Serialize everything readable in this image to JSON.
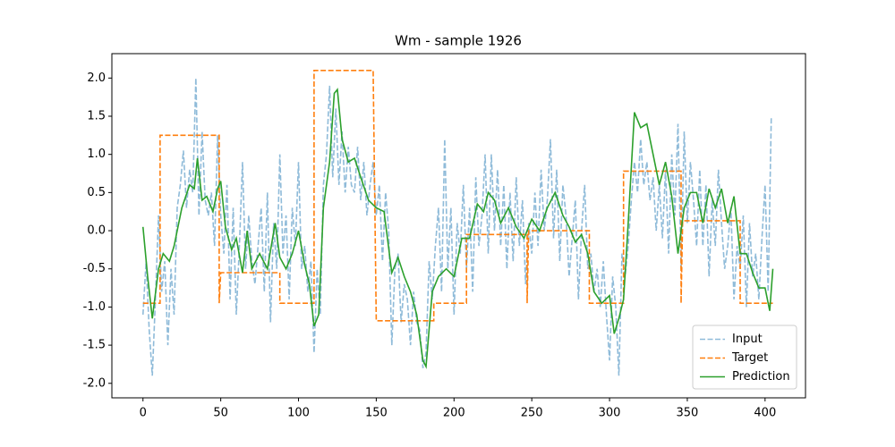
{
  "chart_data": {
    "type": "line",
    "title": "Wm - sample 1926",
    "xlim": [
      -20,
      426
    ],
    "ylim": [
      -2.19,
      2.32
    ],
    "xticks": [
      0,
      50,
      100,
      150,
      200,
      250,
      300,
      350,
      400
    ],
    "yticks": [
      {
        "value": -2,
        "label": "-2.0"
      },
      {
        "value": -1.5,
        "label": "-1.5"
      },
      {
        "value": -1,
        "label": "-1.0"
      },
      {
        "value": -0.5,
        "label": "-0.5"
      },
      {
        "value": 0,
        "label": "0.0"
      },
      {
        "value": 0.5,
        "label": "0.5"
      },
      {
        "value": 1,
        "label": "1.0"
      },
      {
        "value": 1.5,
        "label": "1.5"
      },
      {
        "value": 2,
        "label": "2.0"
      }
    ],
    "legend": "lower right",
    "series": [
      {
        "name": "Input",
        "color": "#1f77b4",
        "linestyle": "dashed",
        "alpha": 0.5,
        "x": [
          0,
          2,
          4,
          6,
          8,
          10,
          12,
          14,
          16,
          18,
          20,
          22,
          24,
          26,
          28,
          30,
          32,
          34,
          36,
          38,
          40,
          42,
          44,
          46,
          48,
          50,
          52,
          54,
          56,
          58,
          60,
          62,
          64,
          66,
          68,
          70,
          72,
          74,
          76,
          78,
          80,
          82,
          84,
          86,
          88,
          90,
          92,
          94,
          96,
          98,
          100,
          102,
          104,
          106,
          108,
          110,
          112,
          114,
          116,
          118,
          120,
          122,
          124,
          126,
          128,
          130,
          132,
          134,
          136,
          138,
          140,
          142,
          144,
          146,
          148,
          150,
          152,
          154,
          156,
          158,
          160,
          162,
          164,
          166,
          168,
          170,
          172,
          174,
          176,
          178,
          180,
          182,
          184,
          186,
          188,
          190,
          192,
          194,
          196,
          198,
          200,
          202,
          204,
          206,
          208,
          210,
          212,
          214,
          216,
          218,
          220,
          222,
          224,
          226,
          228,
          230,
          232,
          234,
          236,
          238,
          240,
          242,
          244,
          246,
          248,
          250,
          252,
          254,
          256,
          258,
          260,
          262,
          264,
          266,
          268,
          270,
          272,
          274,
          276,
          278,
          280,
          282,
          284,
          286,
          288,
          290,
          292,
          294,
          296,
          298,
          300,
          302,
          304,
          306,
          308,
          310,
          312,
          314,
          316,
          318,
          320,
          322,
          324,
          326,
          328,
          330,
          332,
          334,
          336,
          338,
          340,
          342,
          344,
          346,
          348,
          350,
          352,
          354,
          356,
          358,
          360,
          362,
          364,
          366,
          368,
          370,
          372,
          374,
          376,
          378,
          380,
          382,
          384,
          386,
          388,
          390,
          392,
          394,
          396,
          398,
          400,
          402,
          404
        ],
        "values": [
          -1.1,
          -0.4,
          -1.3,
          -1.9,
          -0.9,
          0.2,
          -0.8,
          -0.4,
          -1.5,
          -0.5,
          -1.1,
          0.3,
          0.6,
          1.05,
          0.3,
          0.8,
          0.5,
          2.0,
          0.2,
          1.3,
          0.4,
          0.2,
          0.5,
          -0.2,
          1.25,
          0.2,
          -0.3,
          0.6,
          -0.9,
          0.3,
          -1.1,
          -0.2,
          0.9,
          -0.5,
          0.2,
          -0.4,
          -0.7,
          -0.2,
          0.3,
          -0.8,
          0.5,
          -1.2,
          0.1,
          -0.5,
          1.0,
          -0.3,
          0.2,
          -0.9,
          0.3,
          -0.2,
          0.9,
          -0.5,
          -0.2,
          -0.8,
          -0.4,
          -1.6,
          -0.5,
          -1.1,
          0.6,
          1.0,
          1.9,
          0.7,
          1.6,
          0.6,
          1.3,
          0.5,
          1.1,
          0.6,
          0.5,
          1.1,
          0.4,
          0.9,
          0.2,
          0.6,
          0.9,
          0.2,
          0.6,
          -0.4,
          0.5,
          0.0,
          -1.5,
          -0.5,
          -0.3,
          -1.2,
          -0.7,
          -0.9,
          -1.5,
          -0.8,
          -1.2,
          -1.3,
          -1.8,
          -1.6,
          -0.4,
          -0.9,
          -0.2,
          0.3,
          -0.8,
          1.2,
          -0.5,
          0.3,
          -1.1,
          0.1,
          -0.3,
          0.6,
          -0.5,
          0.3,
          -0.8,
          0.7,
          -0.2,
          0.2,
          1.0,
          -0.3,
          1.0,
          0.0,
          0.8,
          -0.2,
          0.6,
          -0.5,
          0.5,
          -0.4,
          0.7,
          -0.2,
          0.4,
          -0.7,
          0.1,
          -0.3,
          0.5,
          -0.2,
          0.8,
          0.0,
          0.4,
          1.2,
          -0.1,
          0.8,
          -0.4,
          0.6,
          0.2,
          -0.6,
          -0.1,
          0.4,
          -0.9,
          0.0,
          0.6,
          -0.5,
          -0.3,
          -0.8,
          -0.5,
          -1.0,
          -0.4,
          -1.1,
          -1.7,
          -0.6,
          -1.0,
          -1.9,
          -0.3,
          -0.6,
          -0.2,
          0.4,
          0.9,
          0.5,
          1.2,
          0.6,
          0.9,
          0.4,
          0.7,
          0.0,
          0.6,
          -0.1,
          0.8,
          -0.3,
          1.0,
          0.2,
          1.4,
          -0.5,
          1.3,
          0.1,
          0.9,
          0.4,
          -0.2,
          0.8,
          -0.2,
          0.6,
          -0.6,
          0.4,
          -0.2,
          0.8,
          0.1,
          -0.5,
          -0.2,
          0.3,
          -0.9,
          -0.2,
          -0.5,
          0.2,
          -1.0,
          0.1,
          -0.6,
          -0.3,
          -0.9,
          -0.1,
          0.6,
          -0.8,
          1.5
        ]
      },
      {
        "name": "Target",
        "color": "#ff7f0e",
        "linestyle": "dashed",
        "alpha": 1,
        "x": [
          0,
          11,
          11,
          49,
          49,
          50,
          88,
          88,
          110,
          110,
          148,
          150,
          187,
          187,
          208,
          208,
          247,
          247,
          248,
          287,
          287,
          309,
          309,
          346,
          346,
          347,
          384,
          384,
          405
        ],
        "values": [
          -0.95,
          -0.95,
          1.25,
          1.25,
          -0.95,
          -0.55,
          -0.55,
          -0.95,
          -0.95,
          2.1,
          2.1,
          -1.18,
          -1.18,
          -0.95,
          -0.95,
          -0.05,
          -0.05,
          -0.95,
          0.0,
          0.0,
          -0.95,
          -0.95,
          0.78,
          0.78,
          -0.95,
          0.13,
          0.13,
          -0.95,
          -0.95
        ]
      },
      {
        "name": "Prediction",
        "color": "#2ca02c",
        "linestyle": "solid",
        "alpha": 1,
        "x": [
          0,
          3,
          6,
          10,
          13,
          17,
          20,
          25,
          30,
          33,
          35,
          38,
          41,
          45,
          48,
          50,
          53,
          57,
          60,
          64,
          67,
          70,
          75,
          80,
          85,
          88,
          92,
          96,
          100,
          104,
          107,
          110,
          113,
          116,
          120,
          123,
          125,
          128,
          132,
          136,
          140,
          145,
          150,
          155,
          160,
          164,
          168,
          172,
          176,
          180,
          182,
          186,
          190,
          195,
          200,
          205,
          210,
          215,
          219,
          222,
          226,
          230,
          235,
          240,
          245,
          250,
          255,
          260,
          265,
          270,
          274,
          278,
          282,
          286,
          290,
          295,
          300,
          303,
          306,
          309,
          312,
          316,
          320,
          324,
          328,
          332,
          336,
          340,
          344,
          348,
          352,
          356,
          360,
          364,
          368,
          372,
          376,
          380,
          384,
          388,
          392,
          396,
          400,
          403,
          405
        ],
        "values": [
          0.05,
          -0.6,
          -1.15,
          -0.5,
          -0.3,
          -0.4,
          -0.2,
          0.3,
          0.6,
          0.55,
          0.95,
          0.4,
          0.45,
          0.25,
          0.55,
          0.65,
          0.05,
          -0.25,
          -0.1,
          -0.55,
          0.0,
          -0.5,
          -0.3,
          -0.5,
          0.1,
          -0.35,
          -0.5,
          -0.3,
          0.0,
          -0.45,
          -0.7,
          -1.25,
          -1.1,
          0.3,
          0.9,
          1.8,
          1.85,
          1.2,
          0.9,
          0.95,
          0.7,
          0.4,
          0.3,
          0.25,
          -0.55,
          -0.35,
          -0.6,
          -0.8,
          -1.1,
          -1.7,
          -1.78,
          -0.8,
          -0.6,
          -0.5,
          -0.6,
          -0.1,
          -0.1,
          0.35,
          0.25,
          0.5,
          0.4,
          0.1,
          0.3,
          0.05,
          -0.1,
          0.15,
          0.0,
          0.3,
          0.5,
          0.2,
          0.05,
          -0.15,
          -0.05,
          -0.3,
          -0.8,
          -0.95,
          -0.85,
          -1.35,
          -1.15,
          -0.9,
          0.1,
          1.55,
          1.35,
          1.4,
          1.0,
          0.6,
          0.9,
          0.45,
          -0.3,
          0.3,
          0.5,
          0.5,
          0.1,
          0.55,
          0.3,
          0.55,
          0.1,
          0.45,
          -0.3,
          -0.3,
          -0.55,
          -0.75,
          -0.75,
          -1.05,
          -0.5
        ]
      }
    ]
  }
}
